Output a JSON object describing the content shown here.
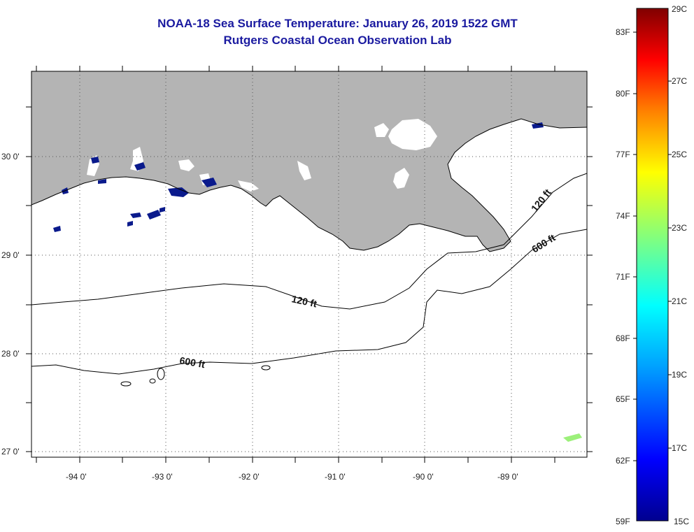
{
  "header": {
    "title": "NOAA-18 Sea Surface Temperature:  January 26, 2019 1522 GMT",
    "subtitle": "Rutgers Coastal Ocean Observation Lab"
  },
  "map": {
    "lat_labels": [
      "30 0'",
      "29 0'",
      "28 0'",
      "27 0'"
    ],
    "lon_labels": [
      "-94 0'",
      "-93 0'",
      "-92 0'",
      "-91 0'",
      "-90 0'",
      "-89 0'"
    ],
    "contours": [
      {
        "label": "120 ft",
        "depth_ft": 120
      },
      {
        "label": "600 ft",
        "depth_ft": 600
      }
    ],
    "colors": {
      "land": "#b4b4b4",
      "cloud": "#ffffff",
      "cold_pixels": "#0a1a8c",
      "warm_pixels": "#9cf07a"
    }
  },
  "colorbar": {
    "f_labels": [
      "83F",
      "80F",
      "77F",
      "74F",
      "71F",
      "68F",
      "65F",
      "62F",
      "59F"
    ],
    "c_labels": [
      "29C",
      "27C",
      "25C",
      "23C",
      "21C",
      "19C",
      "17C",
      "15C"
    ],
    "colors": [
      "#00008f",
      "#0000ff",
      "#00a0ff",
      "#00ffff",
      "#80ff80",
      "#ffff00",
      "#ff8000",
      "#ff0000",
      "#800000"
    ]
  }
}
